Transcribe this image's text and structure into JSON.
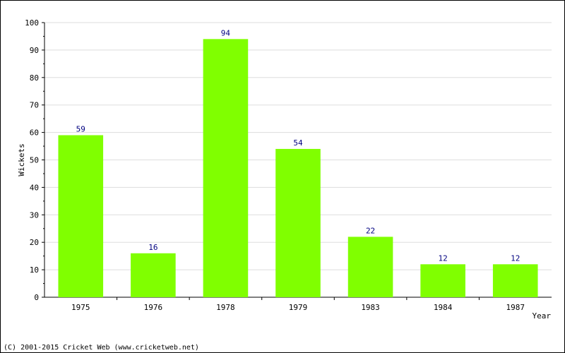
{
  "chart_data": {
    "type": "bar",
    "categories": [
      "1975",
      "1976",
      "1978",
      "1979",
      "1983",
      "1984",
      "1987"
    ],
    "values": [
      59,
      16,
      94,
      54,
      22,
      12,
      12
    ],
    "xlabel": "Year",
    "ylabel": "Wickets",
    "ylim": [
      0,
      100
    ],
    "yticks": [
      0,
      10,
      20,
      30,
      40,
      50,
      60,
      70,
      80,
      90,
      100
    ],
    "grid": true,
    "data_labels": true,
    "colors": {
      "bar": "#80ff00",
      "value_label": "#000080",
      "grid": "#dddddd",
      "axis": "#000000"
    }
  },
  "footer": {
    "copyright": "(C) 2001-2015 Cricket Web (www.cricketweb.net)"
  }
}
